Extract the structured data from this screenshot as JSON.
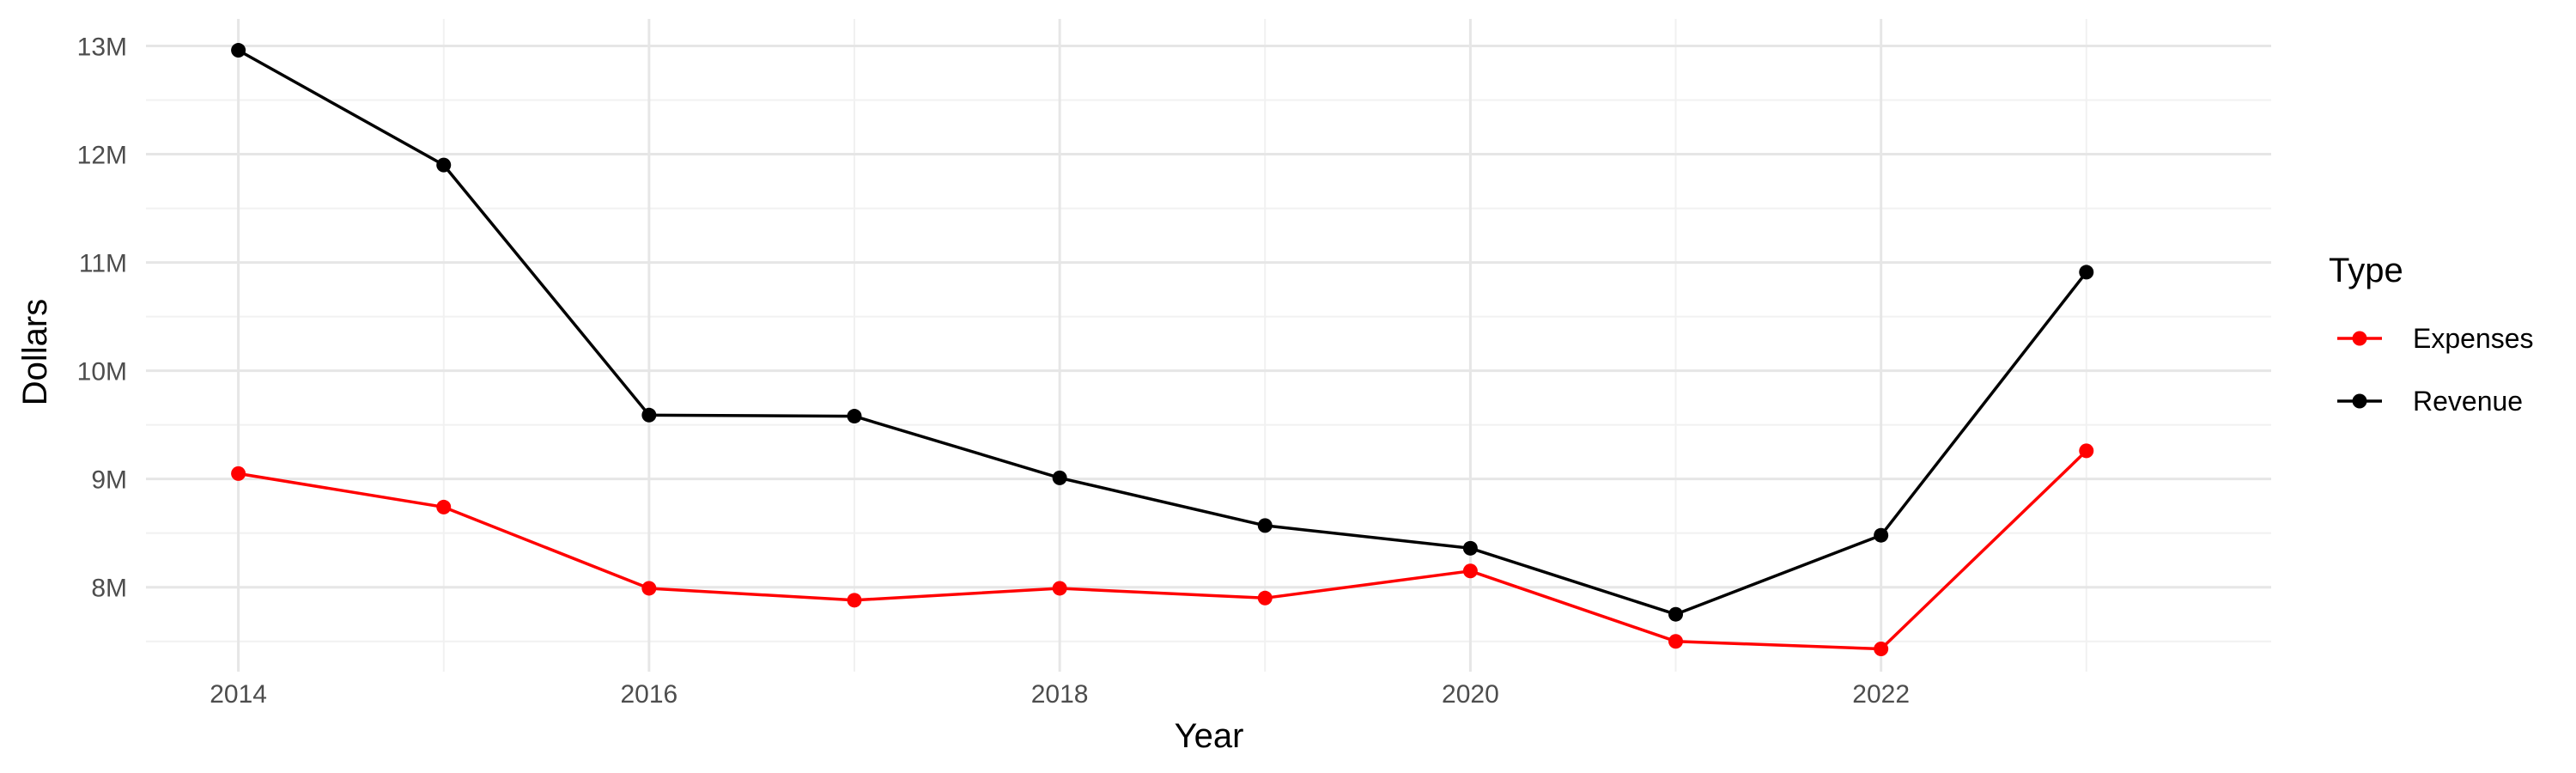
{
  "chart_data": {
    "type": "line",
    "title": "",
    "xlabel": "Year",
    "ylabel": "Dollars",
    "x": [
      2014,
      2015,
      2016,
      2017,
      2018,
      2019,
      2020,
      2021,
      2022,
      2023
    ],
    "x_ticks": [
      "2014",
      "2016",
      "2018",
      "2020",
      "2022"
    ],
    "y_ticks": [
      "8M",
      "9M",
      "10M",
      "11M",
      "12M",
      "13M"
    ],
    "xlim": [
      2013.55,
      2023.9
    ],
    "ylim": [
      7.22,
      13.25
    ],
    "y_unit": "millions of dollars",
    "grid": true,
    "legend": {
      "title": "Type",
      "placement": "right"
    },
    "series": [
      {
        "name": "Expenses",
        "color": "#ff0000",
        "values": [
          9.05,
          8.74,
          7.99,
          7.88,
          7.99,
          7.9,
          8.15,
          7.5,
          7.43,
          9.26
        ]
      },
      {
        "name": "Revenue",
        "color": "#000000",
        "values": [
          12.96,
          11.9,
          9.59,
          9.58,
          9.01,
          8.57,
          8.36,
          7.75,
          8.48,
          10.91
        ]
      }
    ]
  }
}
